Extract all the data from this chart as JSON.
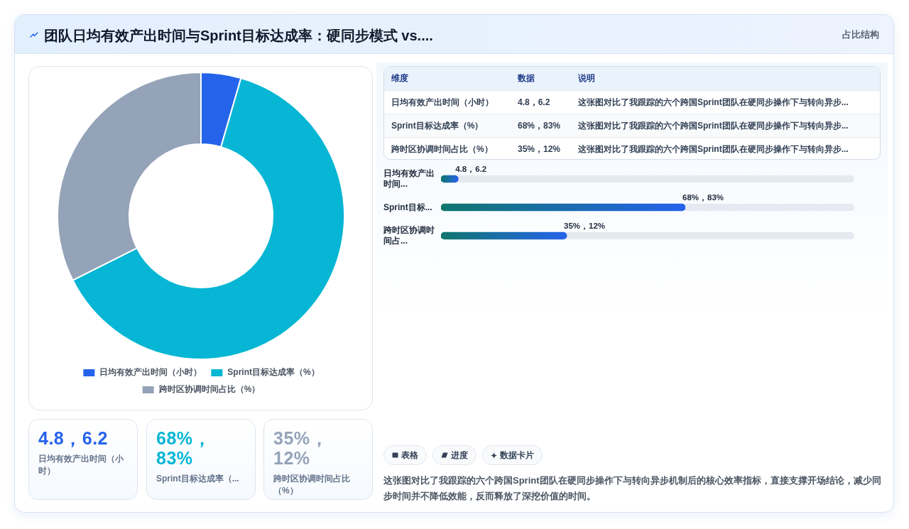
{
  "chart_data": [
    {
      "type": "donut",
      "title": "团队日均有效产出时间与Sprint目标达成率：硬同步模式 vs....",
      "categories": [
        "日均有效产出时间（小时）",
        "Sprint目标达成率（%）",
        "跨时区协调时间占比（%）"
      ],
      "values": [
        4.5,
        63.1,
        32.4
      ],
      "colors": [
        "#2563eb",
        "#06b6d4",
        "#94a3b8"
      ],
      "legend": "bottom"
    },
    {
      "type": "other",
      "subtitle": "占比结构",
      "annotations": [
        "维度",
        "数据",
        "说明",
        "日均有效产出时间（小时）",
        "4.8，6.2",
        "这张图对比了我跟踪的六个跨国Sprint团队在硬同步操作下与转向异步...",
        "Sprint目标达成率（%）",
        "68%，83%",
        "这张图对比了我跟踪的六个跨国Sprint团队在硬同步操作下与转向异步...",
        "跨时区协调时间占比（%）",
        "35%，12%",
        "这张图对比了我跟踪的六个跨国Sprint团队在硬同步操作下与转向异步..."
      ]
    },
    {
      "type": "bar",
      "orientation": "horizontal",
      "categories": [
        "日均有效产出时间...",
        "Sprint目标...",
        "跨时区协调时间占..."
      ],
      "values": [
        4.8,
        68,
        35
      ],
      "color": "#2563eb",
      "value_labels": [
        "4.8，6.2",
        "68%，83%",
        "35%，12%"
      ]
    },
    {
      "type": "other",
      "annotations": [
        "4.8，6.2",
        "日均有效产出时间（小时）",
        "68%，83%",
        "Sprint目标达成率（...",
        "35%，12%",
        "跨时区协调时间占比（%）"
      ]
    },
    {
      "type": "other",
      "annotations": [
        "表格",
        "进度",
        "数据卡片",
        "这张图对比了我跟踪的六个跨国Sprint团队在硬同步操作下与转向异步机制后的核心效率指标，直接支撑开场结论，减少同步时间并不降低效能，反而释放了深挖价值的时间。"
      ]
    }
  ]
}
